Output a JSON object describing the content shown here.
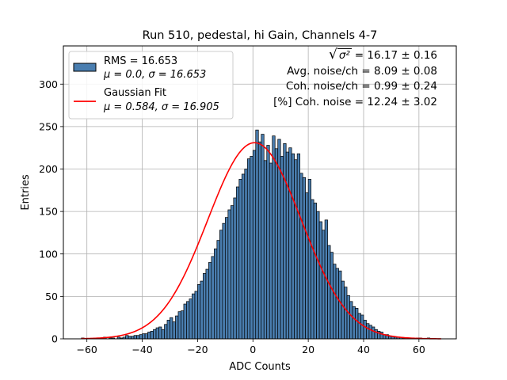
{
  "chart_data": {
    "type": "bar",
    "title": "Run 510, pedestal, hi Gain, Channels 4-7",
    "xlabel": "ADC Counts",
    "ylabel": "Entries",
    "xlim": [
      -68.5,
      73.5
    ],
    "ylim": [
      0,
      345
    ],
    "xticks": [
      "−60",
      "−40",
      "−20",
      "0",
      "20",
      "40",
      "60"
    ],
    "xtick_values": [
      -60,
      -40,
      -20,
      0,
      20,
      40,
      60
    ],
    "yticks": [
      "0",
      "50",
      "100",
      "150",
      "200",
      "250",
      "300"
    ],
    "ytick_values": [
      0,
      50,
      100,
      150,
      200,
      250,
      300
    ],
    "grid": true,
    "legend_placement": "top-left",
    "histogram": {
      "name": "RMS = 16.653",
      "label2": "μ = 0.0, σ = 16.653",
      "bin_width": 1,
      "bin_start": -62,
      "color": "#4a7eb0",
      "edge_color": "#000000",
      "counts": [
        1,
        0,
        0,
        0,
        0,
        0,
        0,
        0,
        2,
        0,
        1,
        1,
        0,
        2,
        1,
        2,
        4,
        3,
        3,
        4,
        4,
        5,
        6,
        6,
        8,
        9,
        11,
        13,
        14,
        11,
        17,
        22,
        25,
        20,
        27,
        32,
        33,
        41,
        44,
        47,
        53,
        56,
        64,
        68,
        77,
        82,
        90,
        97,
        106,
        116,
        128,
        136,
        143,
        152,
        157,
        166,
        179,
        188,
        194,
        200,
        212,
        215,
        222,
        246,
        232,
        241,
        210,
        228,
        207,
        239,
        224,
        235,
        215,
        230,
        220,
        225,
        218,
        211,
        218,
        195,
        190,
        172,
        188,
        164,
        160,
        150,
        138,
        128,
        140,
        110,
        102,
        88,
        83,
        80,
        68,
        61,
        51,
        44,
        38,
        36,
        30,
        28,
        22,
        18,
        16,
        14,
        11,
        9,
        8,
        5,
        5,
        3,
        3,
        2,
        2,
        2,
        1,
        0,
        1,
        1,
        0,
        1,
        1,
        0,
        0,
        1
      ]
    },
    "fit": {
      "name": "Gaussian Fit",
      "label2": "μ = 0.584, σ = 16.905",
      "mu": 0.584,
      "sigma": 16.905,
      "amplitude": 231,
      "color": "#ff0000"
    },
    "stats_box": {
      "sqrt_label": "σ²",
      "sqrt_value": "= 16.17 ± 0.16",
      "avg_noise": "Avg. noise/ch = 8.09 ± 0.08",
      "coh_noise": "Coh. noise/ch = 0.99 ± 0.24",
      "pct_coh_noise": "[%] Coh. noise = 12.24 ± 3.02"
    }
  }
}
